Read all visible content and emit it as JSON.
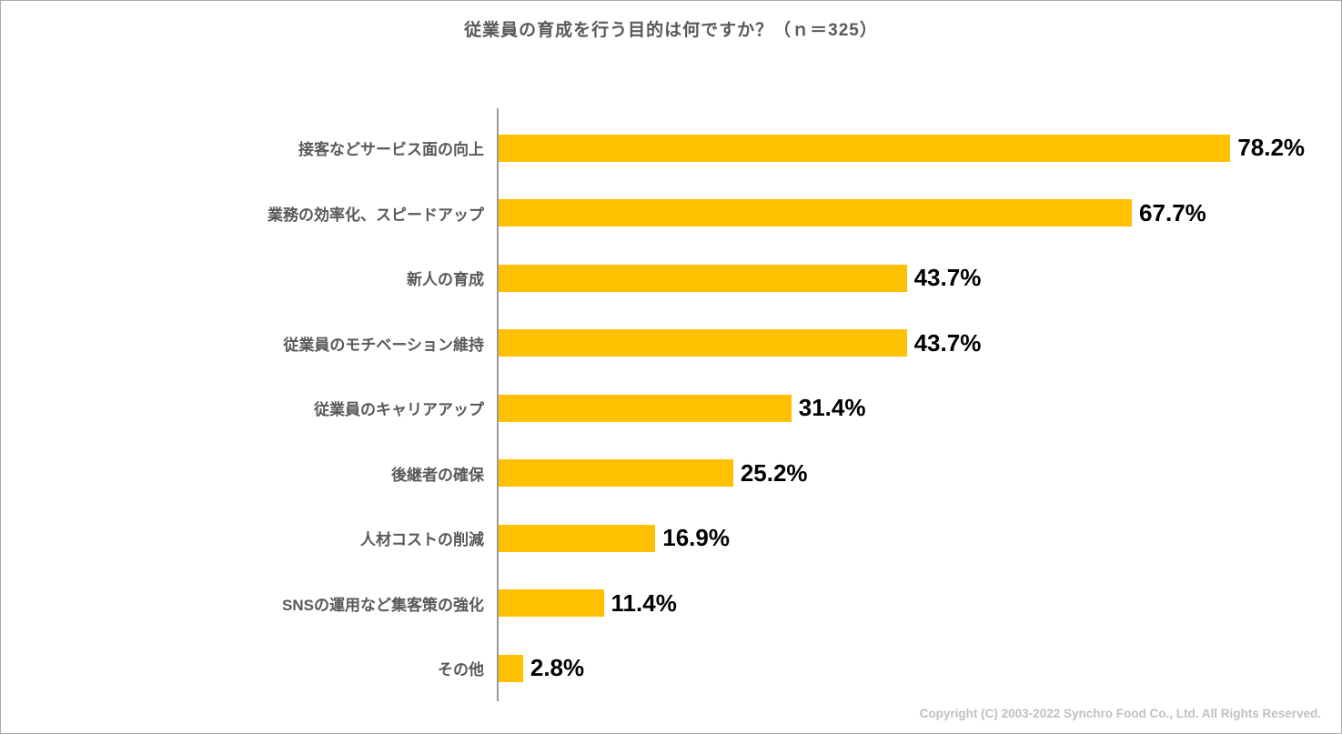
{
  "title": "従業員の育成を行う目的は何ですか？（ｎ＝325）",
  "footer": {
    "copyright": "Copyright (C) 2003-2022  Synchro Food Co., Ltd. All Rights Reserved."
  },
  "colors": {
    "bar": "#FFC000",
    "category_label": "#595959",
    "value_label": "#000000",
    "title": "#595959",
    "axis": "#9A9A9A"
  },
  "chart_data": {
    "type": "bar",
    "orientation": "horizontal",
    "title": "従業員の育成を行う目的は何ですか？（ｎ＝325）",
    "n": 325,
    "categories": [
      "接客などサービス面の向上",
      "業務の効率化、スピードアップ",
      "新人の育成",
      "従業員のモチベーション維持",
      "従業員のキャリアアップ",
      "後継者の確保",
      "人材コストの削減",
      "SNSの運用など集客策の強化",
      "その他"
    ],
    "values": [
      78.2,
      67.7,
      43.7,
      43.7,
      31.4,
      25.2,
      16.9,
      11.4,
      2.8
    ],
    "value_labels": [
      "78.2%",
      "67.7%",
      "43.7%",
      "43.7%",
      "31.4%",
      "25.2%",
      "16.9%",
      "11.4%",
      "2.8%"
    ],
    "xlabel": "",
    "ylabel": "",
    "xlim": [
      0,
      90
    ],
    "grid": false,
    "legend": false,
    "unit": "%"
  }
}
